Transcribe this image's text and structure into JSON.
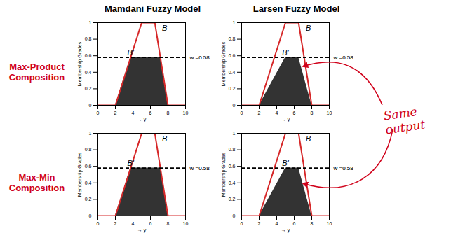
{
  "column_titles": [
    "Mamdani Fuzzy Model",
    "Larsen Fuzzy Model"
  ],
  "row_titles": [
    "Max-Product Composition",
    "Max-Min Composition"
  ],
  "annotation": "Same output",
  "chart_data": [
    {
      "type": "area",
      "xlabel": "→ y",
      "ylabel": "Membership Grades",
      "xlim": [
        0,
        10
      ],
      "xticks": [
        0,
        2,
        4,
        6,
        8,
        10
      ],
      "ylim": [
        0,
        1
      ],
      "yticks": [
        0,
        0.2,
        0.4,
        0.6,
        0.8,
        1
      ],
      "series": [
        {
          "name": "B'",
          "type": "area",
          "color": "#333333",
          "x": [
            2,
            3.74,
            7.13,
            8
          ],
          "values": [
            0,
            0.58,
            0.58,
            0
          ]
        },
        {
          "name": "B",
          "type": "line",
          "color": "#d62728",
          "x": [
            0,
            2,
            5,
            6.5,
            8,
            10
          ],
          "values": [
            0,
            0,
            1,
            1,
            0,
            0
          ]
        }
      ],
      "annotations": [
        {
          "text": "w =0.58",
          "y": 0.58,
          "line_style": "dashed"
        }
      ]
    },
    {
      "type": "area",
      "xlabel": "→ y",
      "ylabel": "Membership Grades",
      "xlim": [
        0,
        10
      ],
      "xticks": [
        0,
        2,
        4,
        6,
        8,
        10
      ],
      "ylim": [
        0,
        1
      ],
      "yticks": [
        0,
        0.2,
        0.4,
        0.6,
        0.8,
        1
      ],
      "series": [
        {
          "name": "B'",
          "type": "area",
          "color": "#333333",
          "x": [
            2,
            5,
            6.5,
            8
          ],
          "values": [
            0,
            0.58,
            0.58,
            0
          ]
        },
        {
          "name": "B",
          "type": "line",
          "color": "#d62728",
          "x": [
            0,
            2,
            5,
            6.5,
            8,
            10
          ],
          "values": [
            0,
            0,
            1,
            1,
            0,
            0
          ]
        }
      ],
      "annotations": [
        {
          "text": "w =0.58",
          "y": 0.58,
          "line_style": "dashed"
        }
      ]
    },
    {
      "type": "area",
      "xlabel": "→ y",
      "ylabel": "Membership Grades",
      "xlim": [
        0,
        10
      ],
      "xticks": [
        0,
        2,
        4,
        6,
        8,
        10
      ],
      "ylim": [
        0,
        1
      ],
      "yticks": [
        0,
        0.2,
        0.4,
        0.6,
        0.8,
        1
      ],
      "series": [
        {
          "name": "B'",
          "type": "area",
          "color": "#333333",
          "x": [
            2,
            3.74,
            7.13,
            8
          ],
          "values": [
            0,
            0.58,
            0.58,
            0
          ]
        },
        {
          "name": "B",
          "type": "line",
          "color": "#d62728",
          "x": [
            0,
            2,
            5,
            6.5,
            8,
            10
          ],
          "values": [
            0,
            0,
            1,
            1,
            0,
            0
          ]
        }
      ],
      "annotations": [
        {
          "text": "w =0.58",
          "y": 0.58,
          "line_style": "dashed"
        }
      ]
    },
    {
      "type": "area",
      "xlabel": "→ y",
      "ylabel": "Membership Grades",
      "xlim": [
        0,
        10
      ],
      "xticks": [
        0,
        2,
        4,
        6,
        8,
        10
      ],
      "ylim": [
        0,
        1
      ],
      "yticks": [
        0,
        0.2,
        0.4,
        0.6,
        0.8,
        1
      ],
      "series": [
        {
          "name": "B'",
          "type": "area",
          "color": "#333333",
          "x": [
            2,
            5,
            6.5,
            8
          ],
          "values": [
            0,
            0.58,
            0.58,
            0
          ]
        },
        {
          "name": "B",
          "type": "line",
          "color": "#d62728",
          "x": [
            0,
            2,
            5,
            6.5,
            8,
            10
          ],
          "values": [
            0,
            0,
            1,
            1,
            0,
            0
          ]
        }
      ],
      "annotations": [
        {
          "text": "w =0.58",
          "y": 0.58,
          "line_style": "dashed"
        }
      ]
    }
  ]
}
